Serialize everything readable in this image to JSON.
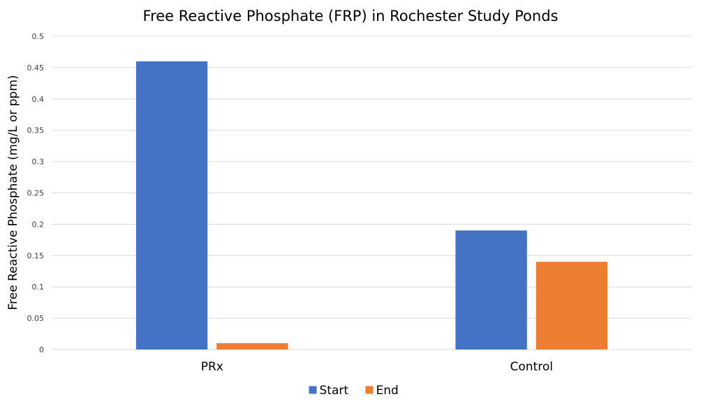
{
  "chart_data": {
    "type": "bar",
    "title": "Free Reactive Phosphate (FRP) in Rochester Study Ponds",
    "xlabel": "",
    "ylabel": "Free Reactive Phosphate (mg/L or ppm)",
    "categories": [
      "PRx",
      "Control"
    ],
    "series": [
      {
        "name": "Start",
        "color": "#4472c4",
        "values": [
          0.46,
          0.19
        ]
      },
      {
        "name": "End",
        "color": "#ed7d31",
        "values": [
          0.01,
          0.14
        ]
      }
    ],
    "ylim": [
      0,
      0.5
    ],
    "yticks": [
      "0",
      "0.05",
      "0.1",
      "0.15",
      "0.2",
      "0.25",
      "0.3",
      "0.35",
      "0.4",
      "0.45",
      "0.5"
    ],
    "grid": true,
    "legend_position": "bottom"
  }
}
